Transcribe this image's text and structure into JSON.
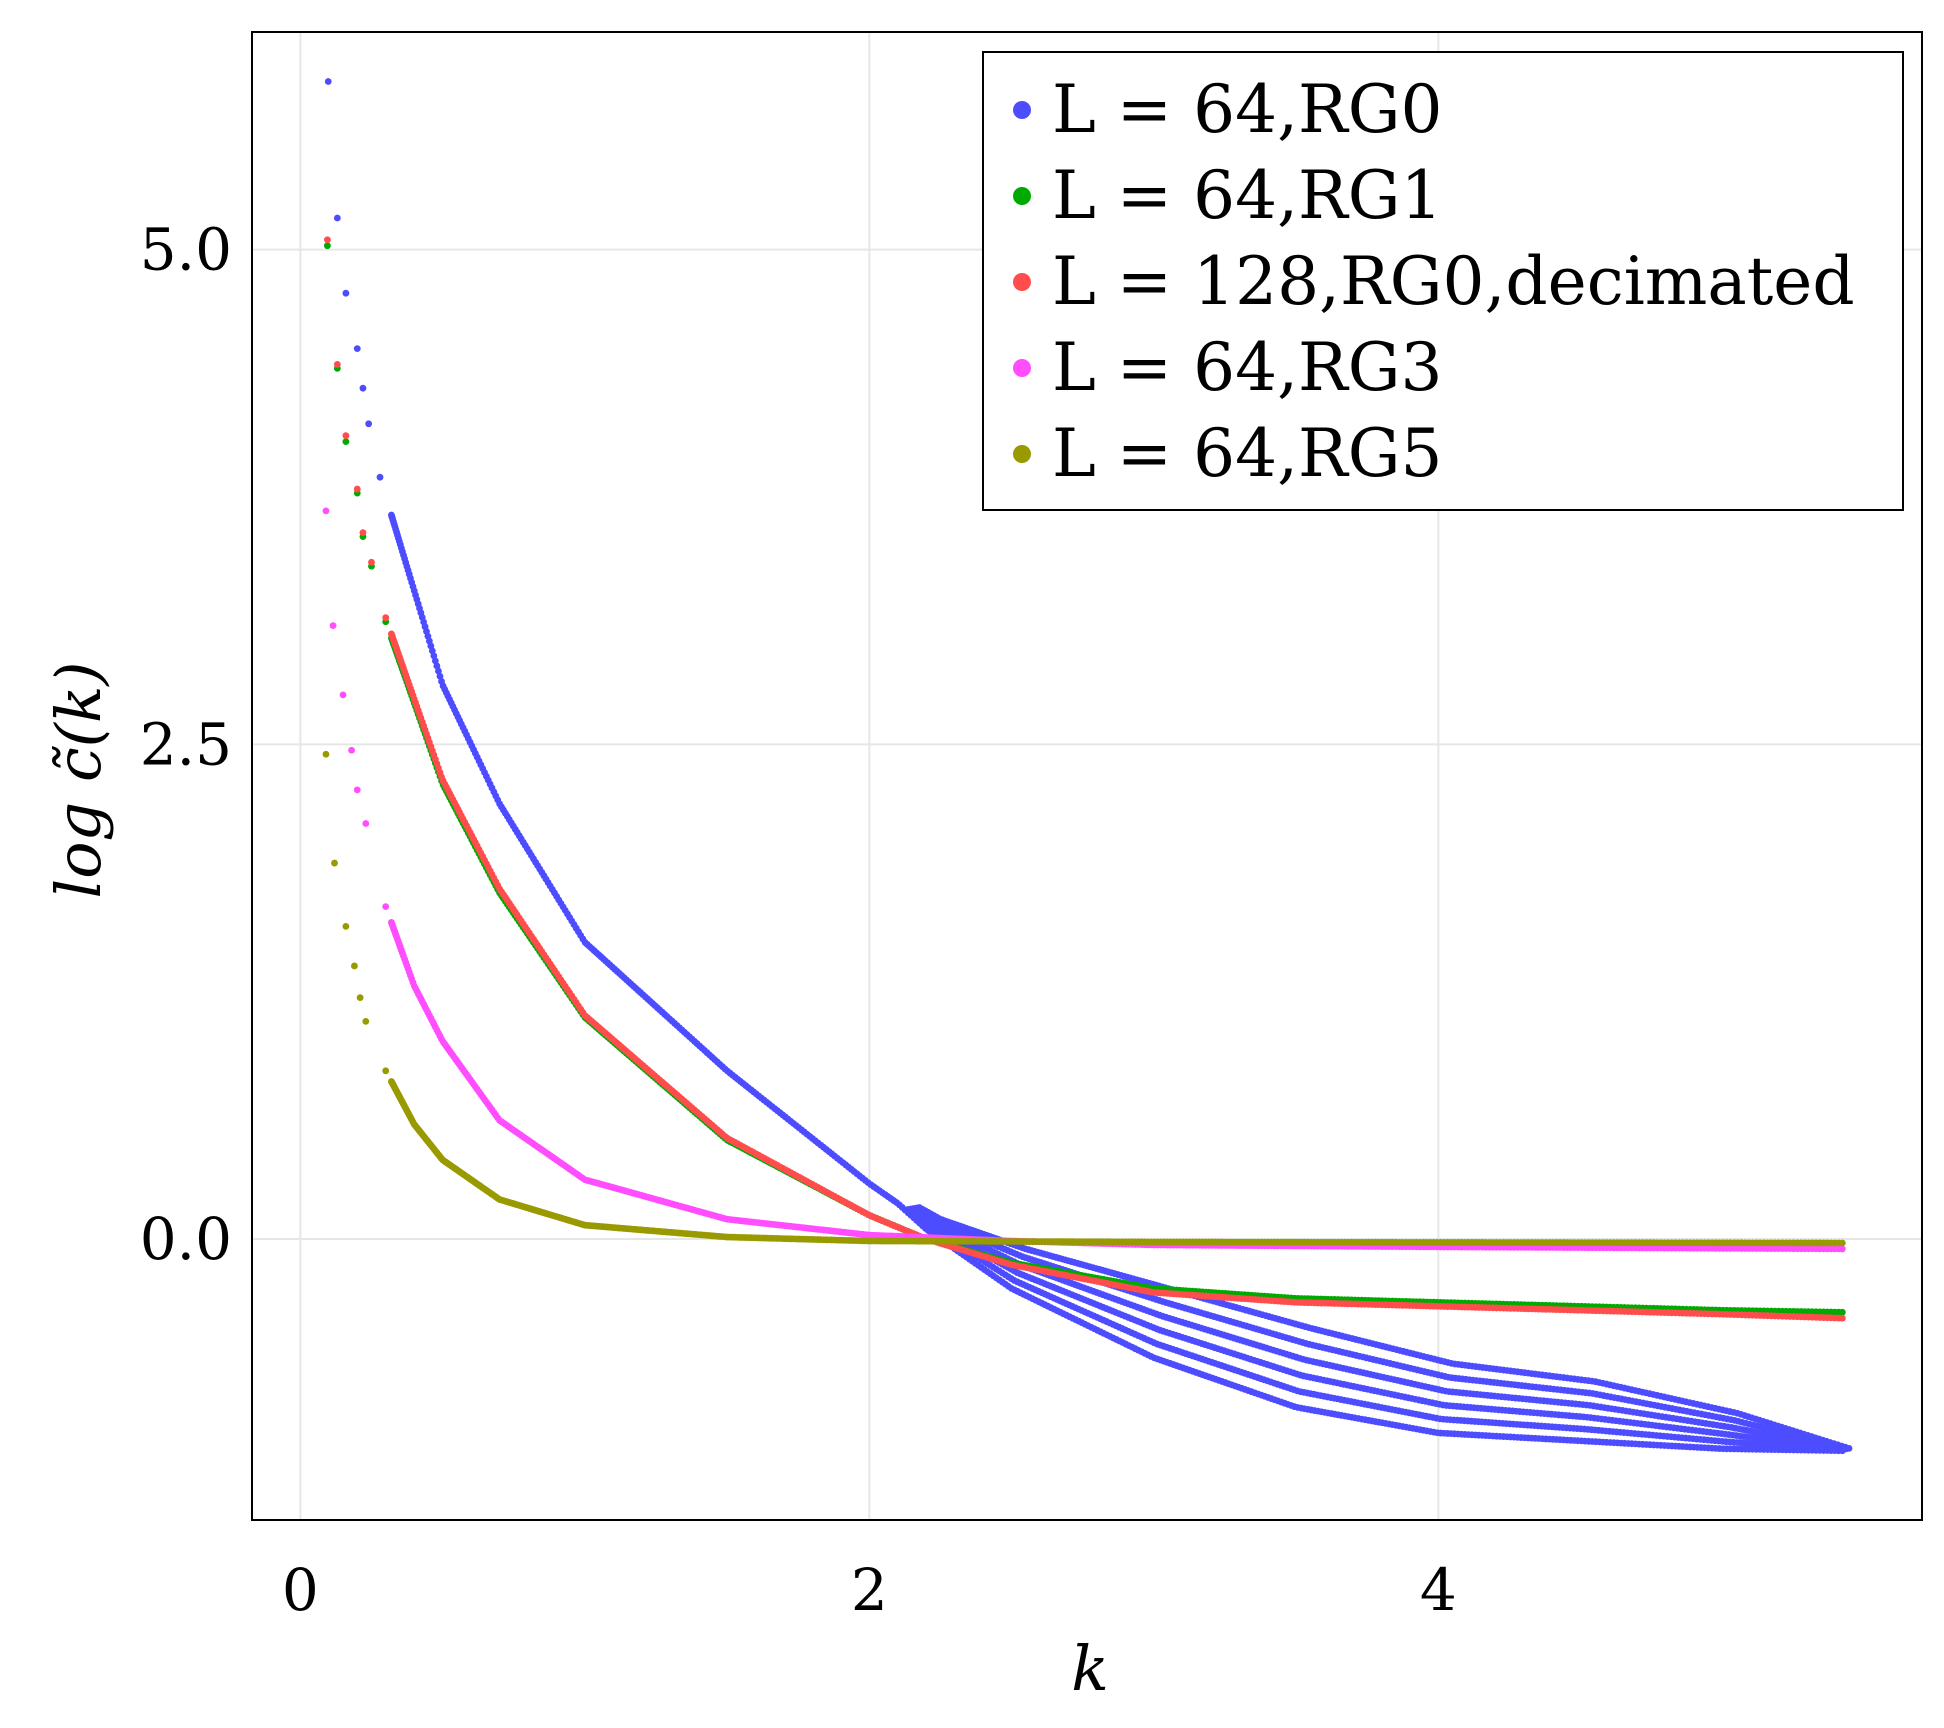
{
  "chart_data": {
    "type": "scatter",
    "title": "",
    "xlabel": "k",
    "ylabel": "log c̃(k)",
    "xlim": [
      -0.17,
      5.7
    ],
    "ylim": [
      -1.42,
      6.1
    ],
    "x_ticks": [
      0,
      2,
      4
    ],
    "x_tick_labels": [
      "0",
      "2",
      "4"
    ],
    "y_ticks": [
      0.0,
      2.5,
      5.0
    ],
    "y_tick_labels": [
      "0.0",
      "2.5",
      "5.0"
    ],
    "grid": true,
    "legend_position": "top-right",
    "series": [
      {
        "name": "L = 64,RG0",
        "legend_label": "L = 64,RG0",
        "color": "#4d4dff",
        "points": [
          [
            0.098,
            5.85
          ],
          [
            0.13,
            5.16
          ],
          [
            0.16,
            4.78
          ],
          [
            0.2,
            4.5
          ],
          [
            0.22,
            4.3
          ],
          [
            0.24,
            4.12
          ],
          [
            0.28,
            3.85
          ],
          [
            0.5,
            2.8
          ],
          [
            0.7,
            2.2
          ],
          [
            1.0,
            1.5
          ],
          [
            1.5,
            0.85
          ],
          [
            2.0,
            0.28
          ],
          [
            2.1,
            0.18
          ],
          [
            2.2,
            0.05
          ],
          [
            2.5,
            -0.25
          ],
          [
            3.0,
            -0.6
          ],
          [
            3.5,
            -0.85
          ],
          [
            4.0,
            -0.98
          ],
          [
            4.5,
            -1.02
          ],
          [
            5.0,
            -1.06
          ],
          [
            5.42,
            -1.07
          ]
        ],
        "spread": [
          [
            2.1,
            0.0
          ],
          [
            2.5,
            0.2
          ],
          [
            3.0,
            0.35
          ],
          [
            3.5,
            0.4
          ],
          [
            4.0,
            0.35
          ],
          [
            4.5,
            0.3
          ],
          [
            5.0,
            0.18
          ],
          [
            5.42,
            0.0
          ]
        ]
      },
      {
        "name": "L = 64,RG1",
        "legend_label": "L = 64,RG1",
        "color": "#00aa00",
        "points": [
          [
            0.095,
            5.02
          ],
          [
            0.13,
            4.4
          ],
          [
            0.16,
            4.03
          ],
          [
            0.2,
            3.77
          ],
          [
            0.22,
            3.55
          ],
          [
            0.25,
            3.4
          ],
          [
            0.3,
            3.12
          ],
          [
            0.5,
            2.3
          ],
          [
            0.7,
            1.75
          ],
          [
            1.0,
            1.12
          ],
          [
            1.5,
            0.5
          ],
          [
            2.0,
            0.12
          ],
          [
            2.2,
            0.0
          ],
          [
            2.5,
            -0.12
          ],
          [
            3.0,
            -0.25
          ],
          [
            3.5,
            -0.3
          ],
          [
            4.0,
            -0.32
          ],
          [
            4.5,
            -0.34
          ],
          [
            5.0,
            -0.36
          ],
          [
            5.42,
            -0.37
          ]
        ]
      },
      {
        "name": "L = 128,RG0,decimated",
        "legend_label": "L = 128,RG0,decimated",
        "color": "#ff4d4d",
        "points": [
          [
            0.095,
            5.05
          ],
          [
            0.13,
            4.42
          ],
          [
            0.16,
            4.06
          ],
          [
            0.2,
            3.79
          ],
          [
            0.22,
            3.57
          ],
          [
            0.25,
            3.42
          ],
          [
            0.3,
            3.14
          ],
          [
            0.5,
            2.32
          ],
          [
            0.7,
            1.77
          ],
          [
            1.0,
            1.13
          ],
          [
            1.5,
            0.51
          ],
          [
            2.0,
            0.12
          ],
          [
            2.2,
            0.0
          ],
          [
            2.5,
            -0.13
          ],
          [
            3.0,
            -0.27
          ],
          [
            3.5,
            -0.32
          ],
          [
            4.0,
            -0.34
          ],
          [
            4.5,
            -0.36
          ],
          [
            5.0,
            -0.38
          ],
          [
            5.42,
            -0.4
          ]
        ]
      },
      {
        "name": "L = 64,RG3",
        "legend_label": "L = 64,RG3",
        "color": "#ff4dff",
        "points": [
          [
            0.09,
            3.68
          ],
          [
            0.115,
            3.1
          ],
          [
            0.15,
            2.75
          ],
          [
            0.18,
            2.47
          ],
          [
            0.2,
            2.27
          ],
          [
            0.23,
            2.1
          ],
          [
            0.3,
            1.68
          ],
          [
            0.4,
            1.28
          ],
          [
            0.5,
            1.0
          ],
          [
            0.7,
            0.6
          ],
          [
            1.0,
            0.3
          ],
          [
            1.5,
            0.1
          ],
          [
            2.0,
            0.02
          ],
          [
            2.5,
            -0.01
          ],
          [
            3.0,
            -0.03
          ],
          [
            4.0,
            -0.04
          ],
          [
            5.42,
            -0.05
          ]
        ]
      },
      {
        "name": "L = 64,RG5",
        "legend_label": "L = 64,RG5",
        "color": "#999900",
        "points": [
          [
            0.09,
            2.45
          ],
          [
            0.12,
            1.9
          ],
          [
            0.16,
            1.58
          ],
          [
            0.19,
            1.38
          ],
          [
            0.21,
            1.22
          ],
          [
            0.23,
            1.1
          ],
          [
            0.3,
            0.85
          ],
          [
            0.4,
            0.58
          ],
          [
            0.5,
            0.4
          ],
          [
            0.7,
            0.2
          ],
          [
            1.0,
            0.07
          ],
          [
            1.5,
            0.01
          ],
          [
            2.0,
            -0.01
          ],
          [
            3.0,
            -0.015
          ],
          [
            5.42,
            -0.02
          ]
        ]
      }
    ]
  }
}
